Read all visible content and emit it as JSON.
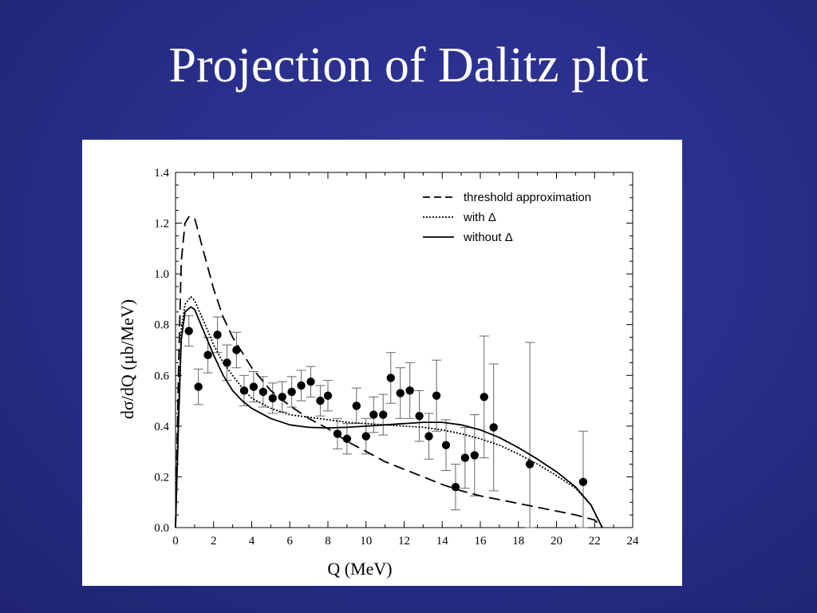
{
  "slide": {
    "title": "Projection of Dalitz plot"
  },
  "colors": {
    "background": "#2a2f8c",
    "title_text": "#ffffff",
    "panel": "#ffffff",
    "ink": "#000000"
  },
  "chart_data": {
    "type": "scatter",
    "title": "",
    "xlabel": "Q (MeV)",
    "ylabel": "dσ/dQ (μb/MeV)",
    "xlim": [
      0,
      24
    ],
    "ylim": [
      0,
      1.4
    ],
    "xticks": [
      0,
      2,
      4,
      6,
      8,
      10,
      12,
      14,
      16,
      18,
      20,
      22,
      24
    ],
    "yticks": [
      0.0,
      0.2,
      0.4,
      0.6,
      0.8,
      1.0,
      1.2,
      1.4
    ],
    "ytick_labels": [
      "0.0",
      "0.2",
      "0.4",
      "0.6",
      "0.8",
      "1.0",
      "1.2",
      "1.4"
    ],
    "grid": false,
    "legend_position": "top-right",
    "series": [
      {
        "name": "threshold approximation",
        "style": "dashed",
        "x": [
          0.0,
          0.15,
          0.3,
          0.5,
          0.7,
          1.0,
          1.5,
          2.0,
          2.5,
          3.0,
          3.5,
          4.0,
          5.0,
          6.0,
          7.0,
          8.0,
          9.0,
          10.0,
          11.0,
          12.0,
          13.0,
          14.0,
          15.0,
          16.0,
          17.0,
          18.0,
          19.0,
          20.0,
          21.0,
          22.0,
          22.4
        ],
        "y": [
          0.0,
          0.6,
          1.05,
          1.2,
          1.225,
          1.22,
          1.08,
          0.94,
          0.83,
          0.75,
          0.69,
          0.63,
          0.54,
          0.48,
          0.43,
          0.39,
          0.34,
          0.3,
          0.26,
          0.23,
          0.2,
          0.17,
          0.145,
          0.125,
          0.11,
          0.095,
          0.08,
          0.065,
          0.05,
          0.03,
          0.0
        ]
      },
      {
        "name": "with Δ",
        "style": "dotted",
        "x": [
          0.0,
          0.15,
          0.3,
          0.5,
          0.8,
          1.0,
          1.5,
          2.0,
          2.5,
          3.0,
          3.5,
          4.0,
          5.0,
          6.0,
          7.0,
          8.0,
          9.0,
          10.0,
          11.0,
          12.0,
          13.0,
          14.0,
          15.0,
          16.0,
          17.0,
          18.0,
          19.0,
          20.0,
          21.0,
          21.8,
          22.4
        ],
        "y": [
          0.0,
          0.45,
          0.78,
          0.88,
          0.91,
          0.895,
          0.81,
          0.72,
          0.65,
          0.6,
          0.55,
          0.51,
          0.47,
          0.445,
          0.435,
          0.425,
          0.415,
          0.41,
          0.405,
          0.4,
          0.395,
          0.385,
          0.37,
          0.35,
          0.325,
          0.29,
          0.25,
          0.205,
          0.155,
          0.09,
          0.0
        ]
      },
      {
        "name": "without Δ",
        "style": "solid",
        "x": [
          0.0,
          0.15,
          0.3,
          0.5,
          0.8,
          1.0,
          1.5,
          2.0,
          2.5,
          3.0,
          3.5,
          4.0,
          5.0,
          6.0,
          7.0,
          8.0,
          9.0,
          10.0,
          11.0,
          12.0,
          13.0,
          14.0,
          15.0,
          16.0,
          17.0,
          18.0,
          19.0,
          20.0,
          21.0,
          21.8,
          22.4
        ],
        "y": [
          0.0,
          0.4,
          0.74,
          0.85,
          0.87,
          0.86,
          0.77,
          0.68,
          0.6,
          0.54,
          0.5,
          0.47,
          0.43,
          0.405,
          0.395,
          0.393,
          0.395,
          0.4,
          0.405,
          0.41,
          0.415,
          0.415,
          0.405,
          0.385,
          0.355,
          0.315,
          0.27,
          0.22,
          0.16,
          0.09,
          0.0
        ]
      }
    ],
    "points": [
      {
        "x": 0.7,
        "y": 0.775,
        "err": 0.06
      },
      {
        "x": 1.2,
        "y": 0.555,
        "err": 0.07
      },
      {
        "x": 1.7,
        "y": 0.68,
        "err": 0.07
      },
      {
        "x": 2.2,
        "y": 0.76,
        "err": 0.07
      },
      {
        "x": 2.7,
        "y": 0.65,
        "err": 0.07
      },
      {
        "x": 3.2,
        "y": 0.7,
        "err": 0.07
      },
      {
        "x": 3.6,
        "y": 0.54,
        "err": 0.06
      },
      {
        "x": 4.1,
        "y": 0.555,
        "err": 0.06
      },
      {
        "x": 4.6,
        "y": 0.535,
        "err": 0.06
      },
      {
        "x": 5.1,
        "y": 0.51,
        "err": 0.06
      },
      {
        "x": 5.6,
        "y": 0.515,
        "err": 0.06
      },
      {
        "x": 6.1,
        "y": 0.535,
        "err": 0.06
      },
      {
        "x": 6.6,
        "y": 0.56,
        "err": 0.06
      },
      {
        "x": 7.1,
        "y": 0.575,
        "err": 0.06
      },
      {
        "x": 7.6,
        "y": 0.5,
        "err": 0.06
      },
      {
        "x": 8.0,
        "y": 0.52,
        "err": 0.06
      },
      {
        "x": 8.5,
        "y": 0.37,
        "err": 0.06
      },
      {
        "x": 9.0,
        "y": 0.35,
        "err": 0.06
      },
      {
        "x": 9.5,
        "y": 0.48,
        "err": 0.07
      },
      {
        "x": 10.0,
        "y": 0.36,
        "err": 0.07
      },
      {
        "x": 10.4,
        "y": 0.445,
        "err": 0.07
      },
      {
        "x": 10.9,
        "y": 0.445,
        "err": 0.08
      },
      {
        "x": 11.3,
        "y": 0.59,
        "err": 0.1
      },
      {
        "x": 11.8,
        "y": 0.53,
        "err": 0.1
      },
      {
        "x": 12.3,
        "y": 0.54,
        "err": 0.11
      },
      {
        "x": 12.8,
        "y": 0.44,
        "err": 0.1
      },
      {
        "x": 13.3,
        "y": 0.36,
        "err": 0.09
      },
      {
        "x": 13.7,
        "y": 0.52,
        "err": 0.14
      },
      {
        "x": 14.2,
        "y": 0.325,
        "err": 0.1
      },
      {
        "x": 14.7,
        "y": 0.16,
        "err": 0.09
      },
      {
        "x": 15.2,
        "y": 0.275,
        "err": 0.12
      },
      {
        "x": 15.7,
        "y": 0.285,
        "err": 0.16
      },
      {
        "x": 16.2,
        "y": 0.515,
        "err": 0.24
      },
      {
        "x": 16.7,
        "y": 0.395,
        "err": 0.25
      },
      {
        "x": 18.6,
        "y": 0.25,
        "err": 0.48
      },
      {
        "x": 21.4,
        "y": 0.18,
        "err": 0.2
      }
    ]
  }
}
